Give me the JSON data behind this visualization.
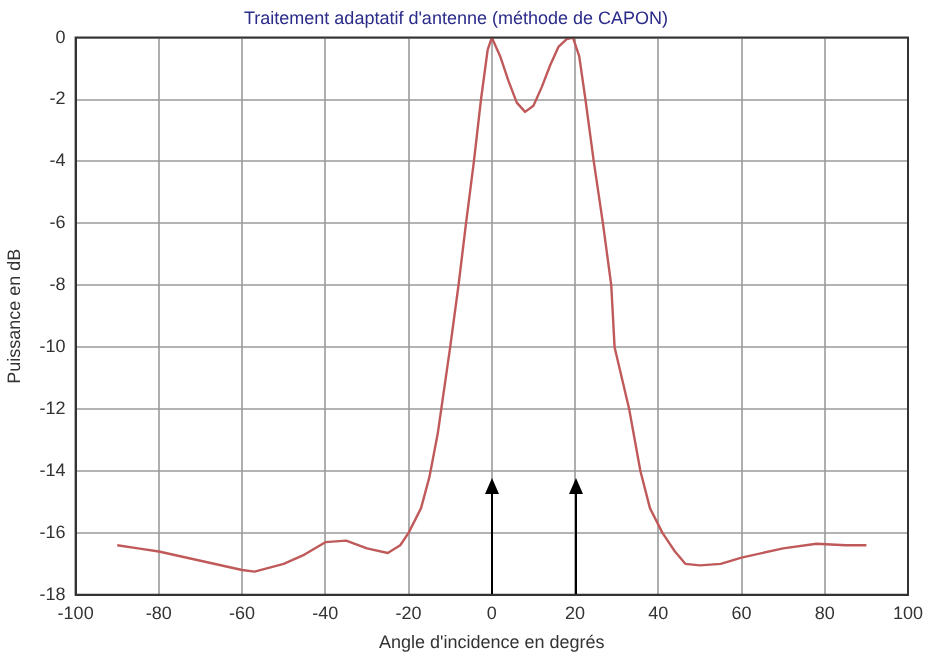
{
  "chart_data": {
    "type": "line",
    "title": "Traitement adaptatif d'antenne (méthode de CAPON)",
    "xlabel": "Angle d'incidence en degrés",
    "ylabel": "Puissance en dB",
    "series": [
      {
        "color": "#c05a5a",
        "x": [
          -90,
          -85,
          -80,
          -70,
          -60,
          -57,
          -50,
          -45,
          -40,
          -35,
          -30,
          -25,
          -22,
          -20,
          -17,
          -15,
          -13,
          -10,
          -8,
          -6.2,
          -4.3,
          -2.6,
          -1,
          0,
          2,
          4,
          6,
          8,
          10,
          12,
          14,
          16,
          18,
          19.5,
          21,
          22.5,
          24.5,
          26.7,
          28.7,
          29.5,
          33,
          35.7,
          38,
          41,
          44,
          46.5,
          50,
          55,
          60,
          70,
          78,
          85,
          90
        ],
        "values": [
          -16.4,
          -16.5,
          -16.6,
          -16.9,
          -17.2,
          -17.25,
          -17.0,
          -16.7,
          -16.3,
          -16.25,
          -16.5,
          -16.65,
          -16.4,
          -16.0,
          -15.2,
          -14.2,
          -12.8,
          -10,
          -8,
          -6,
          -4,
          -2,
          -0.4,
          0,
          -0.6,
          -1.4,
          -2.1,
          -2.4,
          -2.2,
          -1.6,
          -0.9,
          -0.3,
          -0.05,
          0,
          -0.6,
          -2,
          -4,
          -6,
          -8,
          -10,
          -12,
          -14,
          -15.2,
          -16,
          -16.6,
          -17,
          -17.05,
          -17.0,
          -16.8,
          -16.5,
          -16.35,
          -16.4,
          -16.4
        ]
      }
    ],
    "xlim": [
      -100,
      100
    ],
    "xticks": [
      -100,
      -80,
      -60,
      -40,
      -20,
      0,
      20,
      40,
      60,
      80,
      100
    ],
    "ylim": [
      -18,
      0
    ],
    "yticks": [
      -18,
      -16,
      -14,
      -12,
      -10,
      -8,
      -6,
      -4,
      -2,
      0
    ],
    "grid": true,
    "legend": false,
    "marker": "none",
    "line_style": "solid",
    "ref_lines": [
      {
        "axis": "x",
        "value": 0,
        "color": "#000000"
      },
      {
        "axis": "x",
        "value": 20,
        "color": "#000000"
      }
    ]
  }
}
